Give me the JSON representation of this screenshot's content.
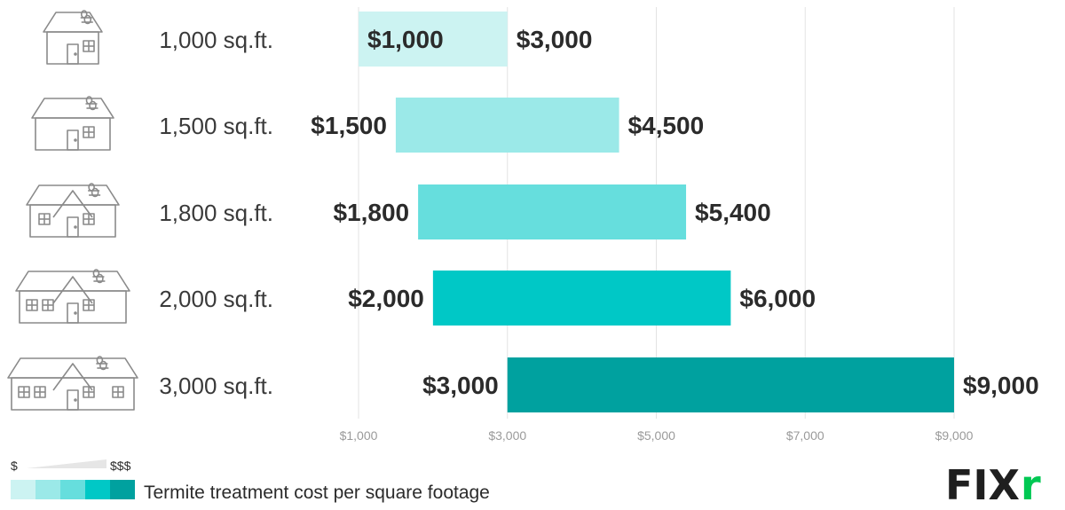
{
  "chart_data": {
    "type": "bar",
    "orientation": "horizontal-range",
    "title": "",
    "xlabel": "",
    "ylabel": "",
    "categories": [
      "1,000 sq.ft.",
      "1,500 sq.ft.",
      "1,800 sq.ft.",
      "2,000 sq.ft.",
      "3,000 sq.ft."
    ],
    "low_values": [
      1000,
      1500,
      1800,
      2000,
      3000
    ],
    "high_values": [
      3000,
      4500,
      5400,
      6000,
      9000
    ],
    "low_labels": [
      "$1,000",
      "$1,500",
      "$1,800",
      "$2,000",
      "$3,000"
    ],
    "high_labels": [
      "$3,000",
      "$4,500",
      "$5,400",
      "$6,000",
      "$9,000"
    ],
    "bar_colors": [
      "#ccf3f2",
      "#9be9e8",
      "#66dedd",
      "#00c8c6",
      "#00a19f"
    ],
    "xlim": [
      1000,
      9000
    ],
    "xticks": [
      1000,
      3000,
      5000,
      7000,
      9000
    ],
    "xtick_labels": [
      "$1,000",
      "$3,000",
      "$5,000",
      "$7,000",
      "$9,000"
    ],
    "grid": "vertical",
    "legend": {
      "placement": "bottom-left",
      "text": "Termite treatment cost per square footage",
      "low_marker": "$",
      "high_marker": "$$$",
      "colors": [
        "#ccf3f2",
        "#9be9e8",
        "#66dedd",
        "#00c8c6",
        "#00a19f"
      ]
    }
  },
  "icons": [
    "house-termite-icon"
  ],
  "brand": {
    "name": "FIXR",
    "letters": [
      "FIX",
      "r"
    ],
    "colors": {
      "dark": "#1f1f1f",
      "accent": "#00c853"
    }
  }
}
